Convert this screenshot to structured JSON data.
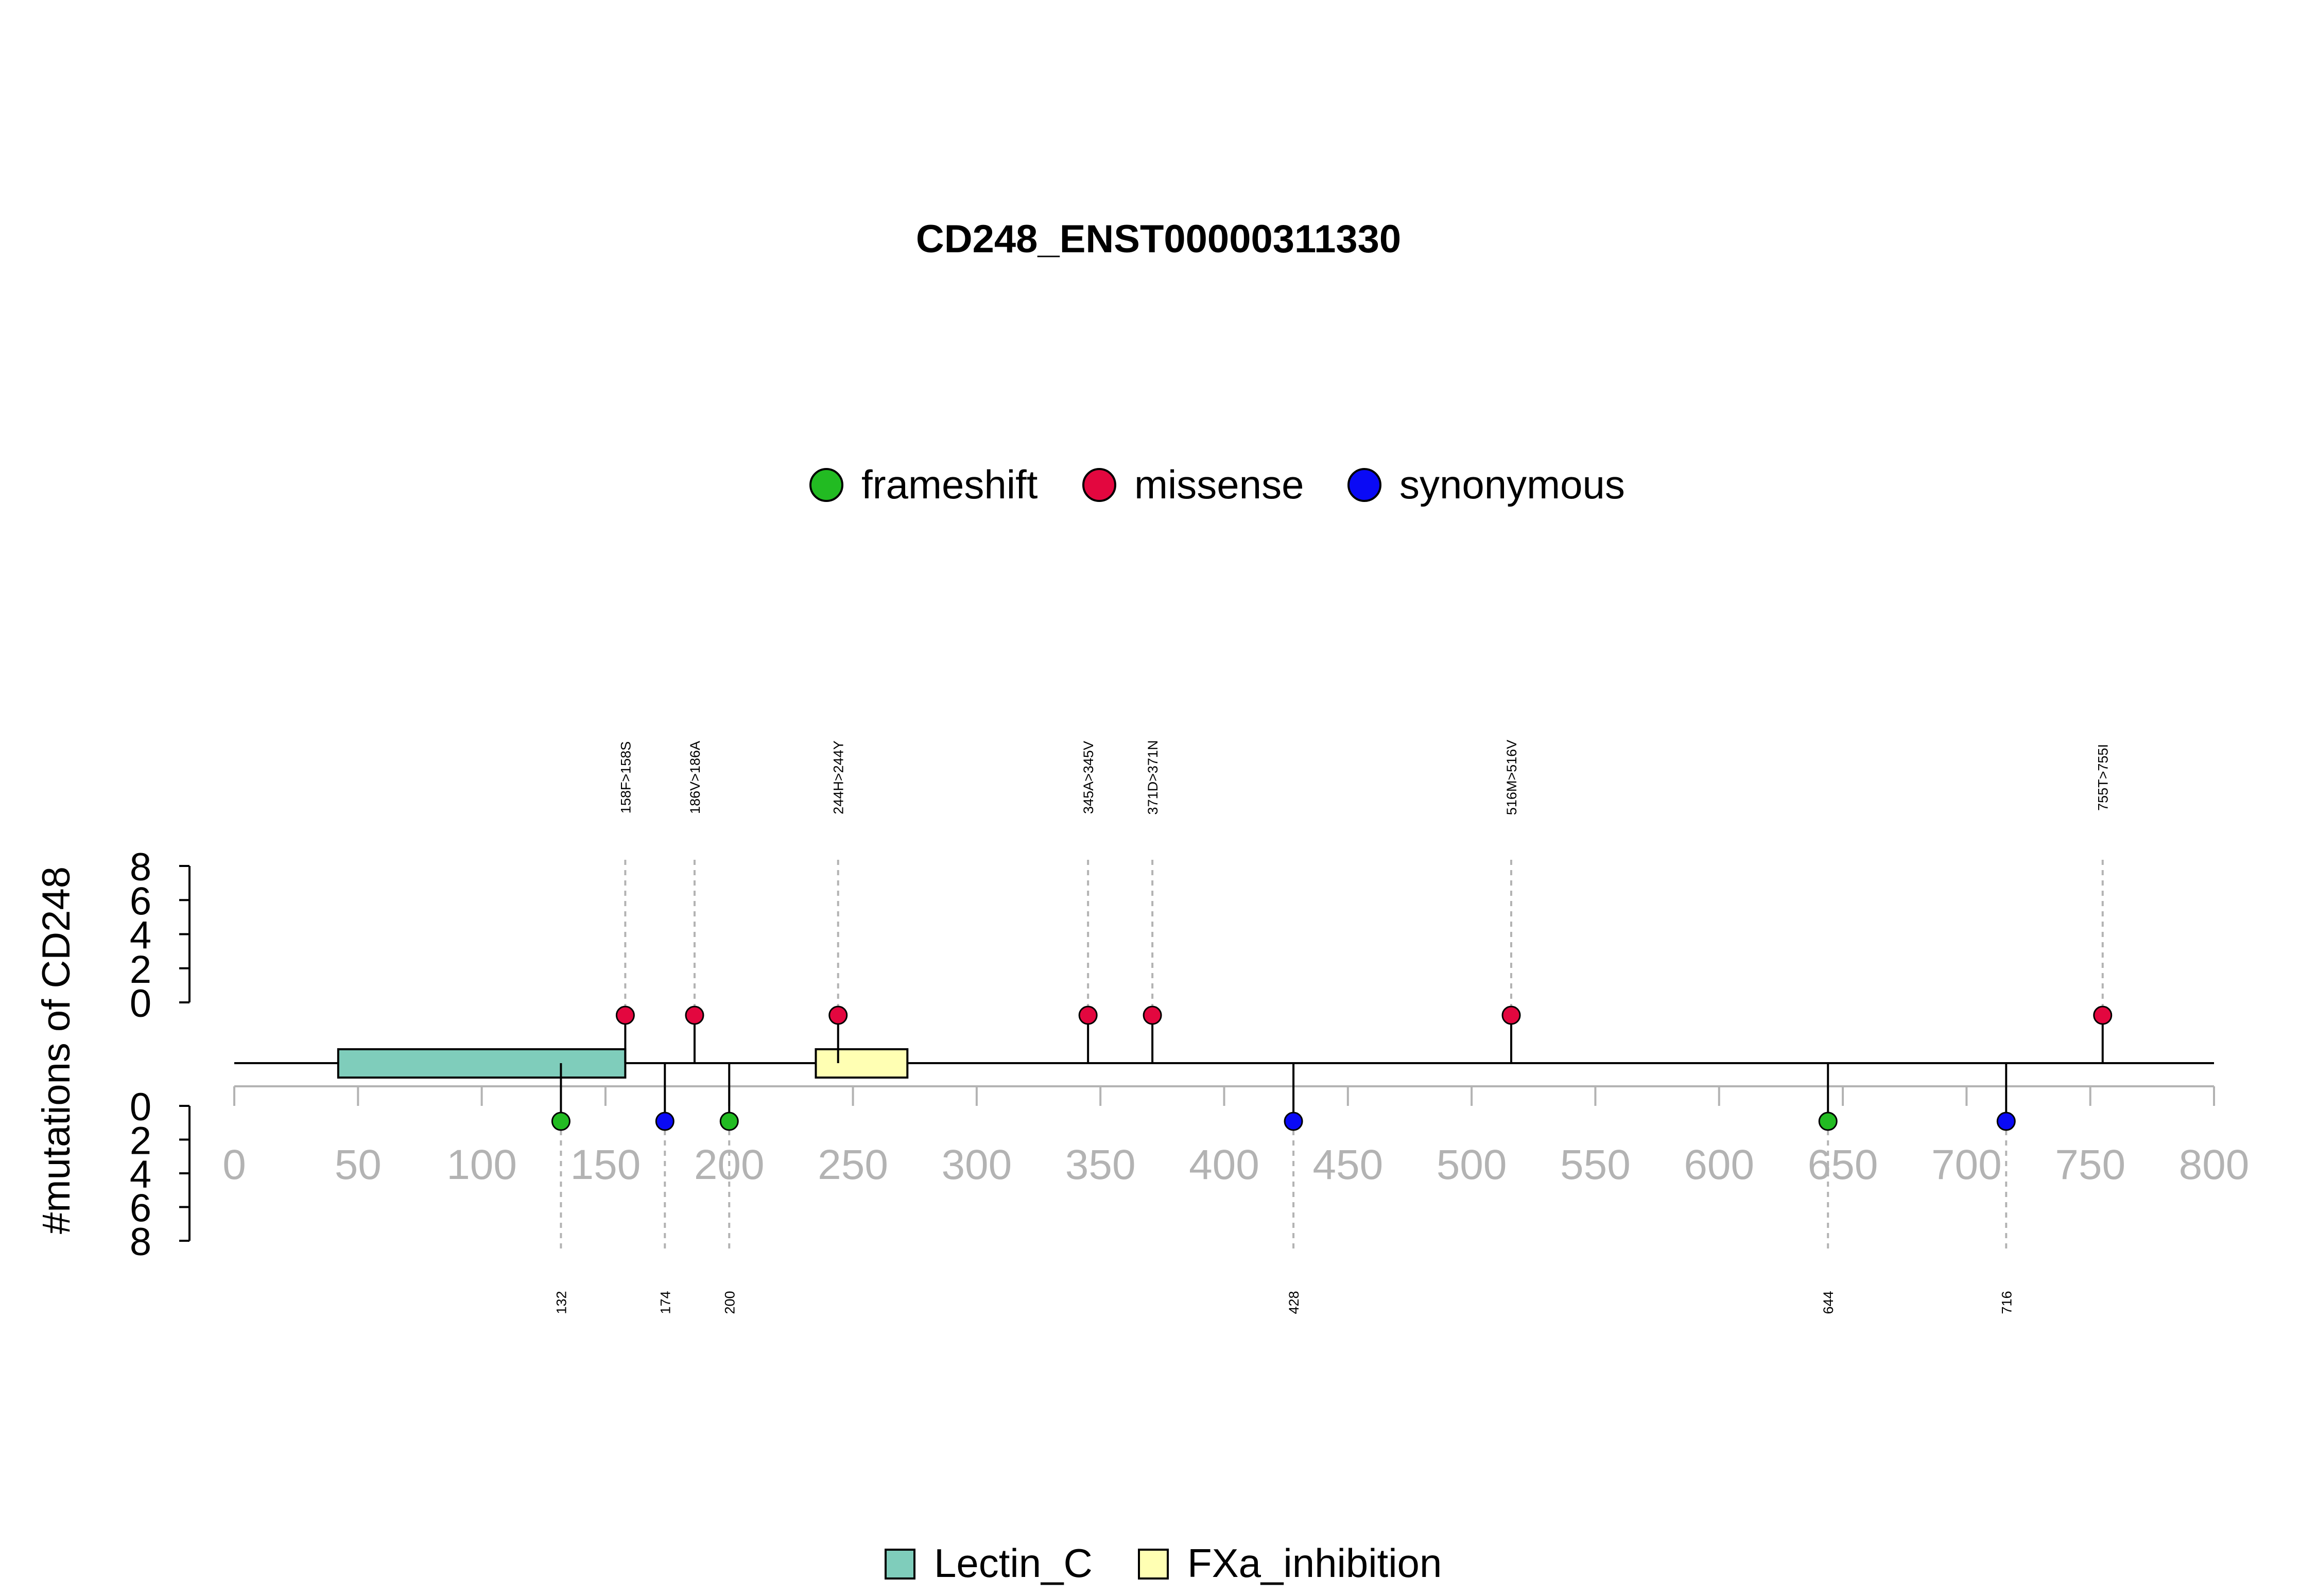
{
  "chart_data": {
    "type": "lollipop",
    "title": "CD248_ENST00000311330",
    "ylabel": "#mutations of CD248",
    "xlim": [
      0,
      800
    ],
    "x_ticks": [
      0,
      50,
      100,
      150,
      200,
      250,
      300,
      350,
      400,
      450,
      500,
      550,
      600,
      650,
      700,
      750,
      800
    ],
    "y_ticks": [
      0,
      2,
      4,
      6,
      8
    ],
    "ylim": [
      0,
      8
    ],
    "mutation_legend": [
      {
        "name": "frameshift",
        "color": "#22bb22"
      },
      {
        "name": "missense",
        "color": "#e3073f"
      },
      {
        "name": "synonymous",
        "color": "#0a0af5"
      }
    ],
    "domain_legend": [
      {
        "name": "Lectin_C",
        "color": "#7fcdbb"
      },
      {
        "name": "FXa_inhibition",
        "color": "#ffffb3"
      }
    ],
    "domains": [
      {
        "name": "Lectin_C",
        "start": 42,
        "end": 158
      },
      {
        "name": "FXa_inhibition",
        "start": 235,
        "end": 272
      }
    ],
    "mutations_above": [
      {
        "position": 158,
        "label": "158F>158S",
        "type": "missense",
        "count": 1
      },
      {
        "position": 186,
        "label": "186V>186A",
        "type": "missense",
        "count": 1
      },
      {
        "position": 244,
        "label": "244H>244Y",
        "type": "missense",
        "count": 1
      },
      {
        "position": 345,
        "label": "345A>345V",
        "type": "missense",
        "count": 1
      },
      {
        "position": 371,
        "label": "371D>371N",
        "type": "missense",
        "count": 1
      },
      {
        "position": 516,
        "label": "516M>516V",
        "type": "missense",
        "count": 1
      },
      {
        "position": 755,
        "label": "755T>755I",
        "type": "missense",
        "count": 1
      }
    ],
    "mutations_below": [
      {
        "position": 132,
        "label": "132",
        "type": "frameshift",
        "count": 1
      },
      {
        "position": 174,
        "label": "174",
        "type": "synonymous",
        "count": 1
      },
      {
        "position": 200,
        "label": "200",
        "type": "frameshift",
        "count": 1
      },
      {
        "position": 428,
        "label": "428",
        "type": "synonymous",
        "count": 1
      },
      {
        "position": 644,
        "label": "644",
        "type": "frameshift",
        "count": 1
      },
      {
        "position": 716,
        "label": "716",
        "type": "synonymous",
        "count": 1
      }
    ]
  }
}
